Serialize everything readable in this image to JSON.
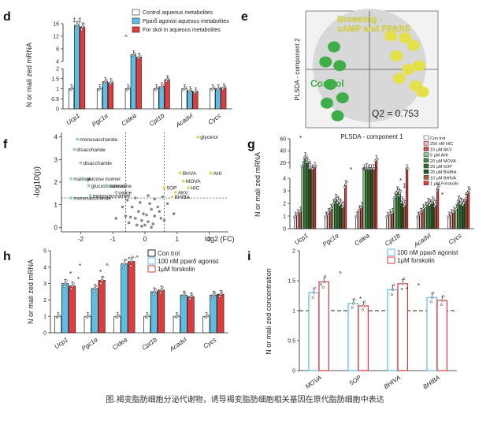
{
  "caption": "图.褐变脂肪细胞分泌代谢物，诱导褐变脂肪细胞相关基因在原代脂肪细胞中表达",
  "colors": {
    "control": "#ffffff",
    "agonist": "#5bbfe5",
    "forskolin": "#e23b3b",
    "browning": "#e3e04a",
    "ctrl_green": "#3fae49"
  },
  "chart_data": [
    {
      "panel": "d",
      "type": "bar",
      "ylabel": "N or mali zed mRNA",
      "categories": [
        "Ucp1",
        "Pgc1α",
        "Cidea",
        "Cpt1b",
        "Acadvl",
        "Cycs"
      ],
      "ylim_lower": [
        0,
        2
      ],
      "ylim_upper": [
        4,
        16
      ],
      "yticks_lower": [
        0,
        0.5,
        1,
        1.5,
        2
      ],
      "yticks_upper": [
        4,
        8,
        12,
        16
      ],
      "legend": [
        "Control aqueous metabolites",
        "Pparδ agonist aqueous metabolites",
        "For skol in aqueous metabolites"
      ],
      "series": [
        {
          "name": "Control aqueous metabolites",
          "color": "#ffffff",
          "values": [
            1.0,
            1.0,
            1.0,
            1.0,
            1.0,
            1.0
          ]
        },
        {
          "name": "Pparδ agonist aqueous metabolites",
          "color": "#5bbfe5",
          "values": [
            15.5,
            1.35,
            6.2,
            1.1,
            0.9,
            1.0
          ]
        },
        {
          "name": "For skol in aqueous metabolites",
          "color": "#e23b3b",
          "values": [
            15.0,
            1.3,
            5.4,
            1.45,
            0.85,
            1.05
          ]
        }
      ],
      "annotations": [
        "‡",
        "‡",
        "^"
      ]
    },
    {
      "panel": "e",
      "type": "scatter",
      "xlabel": "PLSDA - component 1",
      "ylabel": "PLSDA - component 2",
      "groups": [
        {
          "name": "Control",
          "color": "#3fae49",
          "points": [
            [
              -0.5,
              0.3
            ],
            [
              -0.62,
              0.1
            ],
            [
              -0.42,
              0.05
            ],
            [
              -0.55,
              -0.2
            ],
            [
              -0.38,
              -0.38
            ],
            [
              -0.6,
              -0.45
            ],
            [
              -0.45,
              -0.62
            ]
          ]
        },
        {
          "name": "Browning -\ncAMP and PPARδ",
          "color": "#e3e04a",
          "points": [
            [
              0.3,
              0.45
            ],
            [
              0.5,
              0.42
            ],
            [
              0.62,
              0.32
            ],
            [
              0.38,
              0.18
            ],
            [
              0.55,
              0.0
            ],
            [
              0.7,
              0.05
            ],
            [
              0.42,
              -0.12
            ],
            [
              0.65,
              -0.22
            ],
            [
              0.75,
              -0.3
            ]
          ]
        }
      ],
      "annotation": "Q2 = 0.753"
    },
    {
      "panel": "f",
      "type": "scatter",
      "xlabel": "log2 (FC)",
      "ylabel": "-log10(p)",
      "xlim": [
        -2.6,
        2.6
      ],
      "ylim": [
        -0.2,
        4.2
      ],
      "xticks": [
        -2,
        -1,
        0,
        1,
        2
      ],
      "yticks": [
        0,
        1,
        2,
        3,
        4
      ],
      "labeled_points": [
        {
          "label": "monosaccharide",
          "x": -2.1,
          "y": 3.9
        },
        {
          "label": "disaccharide",
          "x": -2.2,
          "y": 3.45
        },
        {
          "label": "disaccharide",
          "x": -2.0,
          "y": 2.85
        },
        {
          "label": "maltose",
          "x": -2.3,
          "y": 2.15
        },
        {
          "label": "glucose isomer",
          "x": -1.9,
          "y": 2.15
        },
        {
          "label": "glucose isomer",
          "x": -1.75,
          "y": 1.85
        },
        {
          "label": "isoleucine",
          "x": -1.2,
          "y": 1.85
        },
        {
          "label": "valine",
          "x": -0.9,
          "y": 1.55
        },
        {
          "label": "monosaccharide",
          "x": -1.7,
          "y": 1.4
        },
        {
          "label": "monosaccharide",
          "x": -2.3,
          "y": 1.3
        },
        {
          "label": "glycerol",
          "x": 1.65,
          "y": 4.0
        },
        {
          "label": "BHVA",
          "x": 1.1,
          "y": 2.4
        },
        {
          "label": "AHI",
          "x": 2.05,
          "y": 2.4
        },
        {
          "label": "MOVA",
          "x": 1.2,
          "y": 2.05
        },
        {
          "label": "HIC",
          "x": 1.35,
          "y": 1.75
        },
        {
          "label": "5OP",
          "x": 0.6,
          "y": 1.75
        },
        {
          "label": "AKV",
          "x": 0.95,
          "y": 1.55
        },
        {
          "label": "BHIBA",
          "x": 0.85,
          "y": 1.35
        }
      ],
      "background_points": [
        [
          -0.5,
          0.2
        ],
        [
          -0.3,
          0.4
        ],
        [
          -0.1,
          0.3
        ],
        [
          0.1,
          0.25
        ],
        [
          0.3,
          0.5
        ],
        [
          0.5,
          0.4
        ],
        [
          -0.2,
          0.7
        ],
        [
          0.2,
          0.8
        ],
        [
          -0.4,
          0.9
        ],
        [
          0.4,
          0.9
        ],
        [
          0.0,
          0.1
        ],
        [
          -0.6,
          0.5
        ],
        [
          0.6,
          0.3
        ],
        [
          0.15,
          1.05
        ],
        [
          -0.15,
          1.1
        ],
        [
          0.3,
          1.25
        ],
        [
          -0.3,
          1.3
        ],
        [
          0.7,
          1.05
        ],
        [
          -0.7,
          0.9
        ],
        [
          0.05,
          0.55
        ],
        [
          -0.05,
          0.6
        ],
        [
          0.25,
          0.15
        ],
        [
          -0.25,
          0.1
        ],
        [
          0.45,
          0.7
        ],
        [
          -0.45,
          0.45
        ],
        [
          0.9,
          0.6
        ],
        [
          -0.9,
          0.4
        ],
        [
          0.1,
          1.4
        ],
        [
          0.55,
          1.35
        ],
        [
          -0.55,
          1.2
        ],
        [
          0.2,
          0.0
        ],
        [
          -0.1,
          0.05
        ]
      ],
      "threshold_lines": {
        "x": [
          -0.6,
          0.6
        ],
        "y": 1.3
      }
    },
    {
      "panel": "g",
      "type": "bar",
      "ylabel": "N or mali zed mRNA",
      "categories": [
        "Ucp1",
        "Pgc1α",
        "Cidea",
        "Cpt1b",
        "Acadvl",
        "Cycs"
      ],
      "ylim_lower": [
        0,
        4
      ],
      "ylim_upper": [
        10,
        60
      ],
      "yticks_lower": [
        0,
        1,
        2,
        3,
        4
      ],
      "yticks_upper": [
        20,
        40,
        60
      ],
      "legend": [
        "Con trol",
        "250 nM HIC",
        "10 μM AKV",
        "5 μM AHI",
        "20 μM MOVA",
        "20 μM 5OP",
        "20 μM BHIBA",
        "10 μM BHIVA",
        "1 μM Forskolin"
      ],
      "series": [
        {
          "name": "Con trol",
          "color": "#ffffff",
          "values": [
            1.0,
            1.0,
            1.0,
            1.0,
            1.0,
            1.0
          ]
        },
        {
          "name": "250 nM HIC",
          "color": "#f2b8b8",
          "values": [
            1.2,
            1.3,
            1.5,
            1.2,
            1.3,
            1.2
          ]
        },
        {
          "name": "10 μM AKV",
          "color": "#d85050",
          "values": [
            1.4,
            1.6,
            1.8,
            1.3,
            1.6,
            1.4
          ]
        },
        {
          "name": "5 μM AHI",
          "color": "#8fd08f",
          "values": [
            15,
            2.0,
            8.0,
            2.5,
            1.8,
            1.6
          ]
        },
        {
          "name": "20 μM MOVA",
          "color": "#3a8f3a",
          "values": [
            30,
            2.4,
            12,
            3.0,
            2.1,
            2.3
          ]
        },
        {
          "name": "20 μM 5OP",
          "color": "#2f6f2f",
          "values": [
            22,
            2.2,
            10,
            2.8,
            2.0,
            2.1
          ]
        },
        {
          "name": "20 μM BHIBA",
          "color": "#1f5a1f",
          "values": [
            12,
            2.0,
            9,
            2.2,
            2.2,
            2.0
          ]
        },
        {
          "name": "10 μM BHIVA",
          "color": "#a06030",
          "values": [
            10,
            1.8,
            7,
            1.9,
            1.9,
            2.4
          ]
        },
        {
          "name": "1 μM Forskolin",
          "color": "#e23b3b",
          "values": [
            14,
            3.5,
            25,
            4.5,
            3.2,
            3.0
          ]
        }
      ],
      "annotations": [
        "*",
        "*",
        "*",
        "*",
        "^",
        "*",
        "‡",
        "*",
        "^"
      ]
    },
    {
      "panel": "h",
      "type": "bar",
      "ylabel": "N or mali zed mRNA",
      "categories": [
        "Ucp1",
        "Pgc1α",
        "Cidea",
        "Cpt1b",
        "Acadvl",
        "Cycs"
      ],
      "ylim": [
        0,
        5
      ],
      "yticks": [
        0,
        1,
        2,
        3,
        4,
        5
      ],
      "legend": [
        "Con trol",
        "100 nM pparδ agonist",
        "1μM forskolin"
      ],
      "series": [
        {
          "name": "Con trol",
          "color": "#ffffff",
          "values": [
            1.0,
            1.0,
            1.0,
            1.0,
            1.0,
            1.0
          ]
        },
        {
          "name": "100 nM pparδ agonist",
          "color": "#5bbfe5",
          "values": [
            3.0,
            2.7,
            4.2,
            2.5,
            2.3,
            2.3
          ]
        },
        {
          "name": "1μM forskolin",
          "color": "#e23b3b",
          "values": [
            2.85,
            3.2,
            4.35,
            2.6,
            2.2,
            2.35
          ]
        }
      ],
      "annotations": [
        "*",
        "*",
        "*",
        "^",
        "^",
        "^",
        "*"
      ]
    },
    {
      "panel": "i",
      "type": "bar",
      "ylabel": "N or mali zed concentration",
      "categories": [
        "MOVA",
        "5OP",
        "BHIVA",
        "BHIBA"
      ],
      "ylim": [
        0,
        2.0
      ],
      "yticks": [
        0,
        0.5,
        1.0,
        1.5,
        2.0
      ],
      "legend": [
        "100 nM pparδ agonist",
        "1μM forskolin"
      ],
      "series": [
        {
          "name": "100 nM pparδ agonist",
          "color": "#5bbfe5",
          "values": [
            1.3,
            1.12,
            1.35,
            1.22
          ]
        },
        {
          "name": "1μM forskolin",
          "color": "#e23b3b",
          "values": [
            1.48,
            1.08,
            1.45,
            1.17
          ]
        }
      ],
      "reference_line": 1.0,
      "annotations": [
        "*",
        "^",
        "*",
        "*",
        "*"
      ]
    }
  ],
  "panel_labels": [
    "d",
    "e",
    "f",
    "g",
    "h",
    "i"
  ]
}
